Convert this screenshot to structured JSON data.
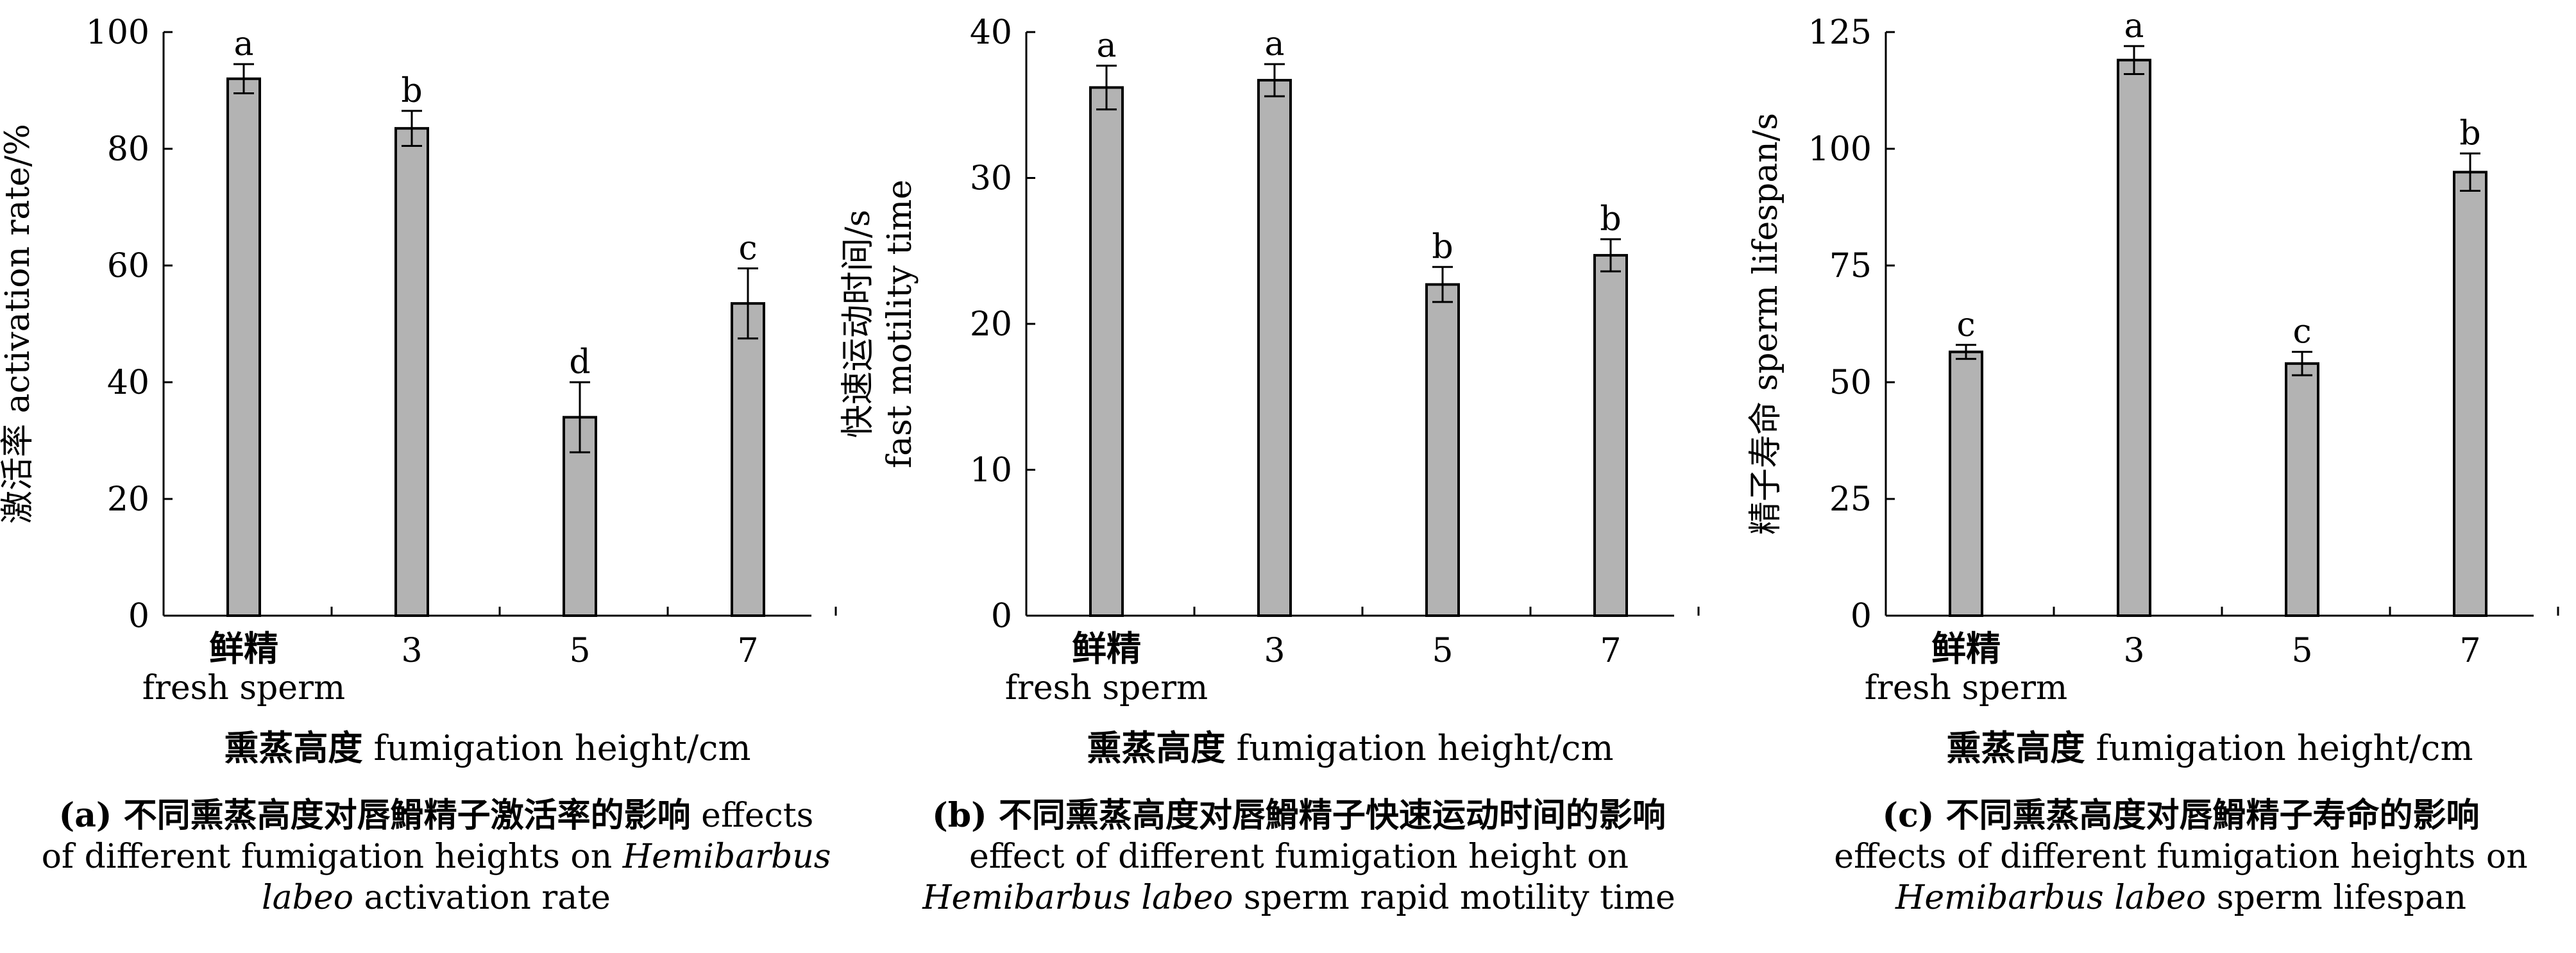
{
  "chart_data": [
    {
      "type": "bar",
      "panel": "a",
      "categories": [
        {
          "cn": "鲜精",
          "en": "fresh sperm"
        },
        {
          "cn": "",
          "en": "3"
        },
        {
          "cn": "",
          "en": "5"
        },
        {
          "cn": "",
          "en": "7"
        }
      ],
      "values": [
        92,
        83.5,
        34,
        53.5
      ],
      "errors": [
        2.5,
        3,
        6,
        6
      ],
      "letters": [
        "a",
        "b",
        "d",
        "c"
      ],
      "ylim": [
        0,
        100
      ],
      "yticks": [
        0,
        20,
        40,
        60,
        80,
        100
      ],
      "ylabel": "激活率 activation rate/%",
      "xlabel_cn": "熏蒸高度",
      "xlabel_en": " fumigation height/cm",
      "caption_cn": "(a) 不同熏蒸高度对唇䱻精子激活率的影响",
      "caption_en": " effects of different fumigation heights on ",
      "caption_species": "Hemibarbus labeo",
      "caption_tail": " activation rate"
    },
    {
      "type": "bar",
      "panel": "b",
      "categories": [
        {
          "cn": "鲜精",
          "en": "fresh sperm"
        },
        {
          "cn": "",
          "en": "3"
        },
        {
          "cn": "",
          "en": "5"
        },
        {
          "cn": "",
          "en": "7"
        }
      ],
      "values": [
        36.2,
        36.7,
        22.7,
        24.7
      ],
      "errors": [
        1.5,
        1.1,
        1.2,
        1.1
      ],
      "letters": [
        "a",
        "a",
        "b",
        "b"
      ],
      "ylim": [
        0,
        40
      ],
      "yticks": [
        0,
        10,
        20,
        30,
        40
      ],
      "ylabel_line1": "快速运动时间/s",
      "ylabel_line2": "fast  motility time",
      "xlabel_cn": "熏蒸高度",
      "xlabel_en": " fumigation height/cm",
      "caption_cn": "(b) 不同熏蒸高度对唇䱻精子快速运动时间的影响",
      "caption_en": " effect of different fumigation height on ",
      "caption_species": "Hemibarbus labeo",
      "caption_tail": " sperm rapid motility time"
    },
    {
      "type": "bar",
      "panel": "c",
      "categories": [
        {
          "cn": "鲜精",
          "en": "fresh sperm"
        },
        {
          "cn": "",
          "en": "3"
        },
        {
          "cn": "",
          "en": "5"
        },
        {
          "cn": "",
          "en": "7"
        }
      ],
      "values": [
        56.5,
        119,
        54,
        95
      ],
      "errors": [
        1.5,
        3,
        2.5,
        4
      ],
      "letters": [
        "c",
        "a",
        "c",
        "b"
      ],
      "ylim": [
        0,
        125
      ],
      "yticks": [
        0,
        25,
        50,
        75,
        100,
        125
      ],
      "ylabel": "精子寿命 sperm lifespan/s",
      "xlabel_cn": "熏蒸高度",
      "xlabel_en": " fumigation height/cm",
      "caption_cn": "(c) 不同熏蒸高度对唇䱻精子寿命的影响",
      "caption_en": "effects of different fumigation heights on ",
      "caption_species": "Hemibarbus labeo",
      "caption_tail": " sperm lifespan"
    }
  ],
  "colors": {
    "bar_fill": "#b3b3b3",
    "bar_stroke": "#000000",
    "axis": "#000000"
  }
}
